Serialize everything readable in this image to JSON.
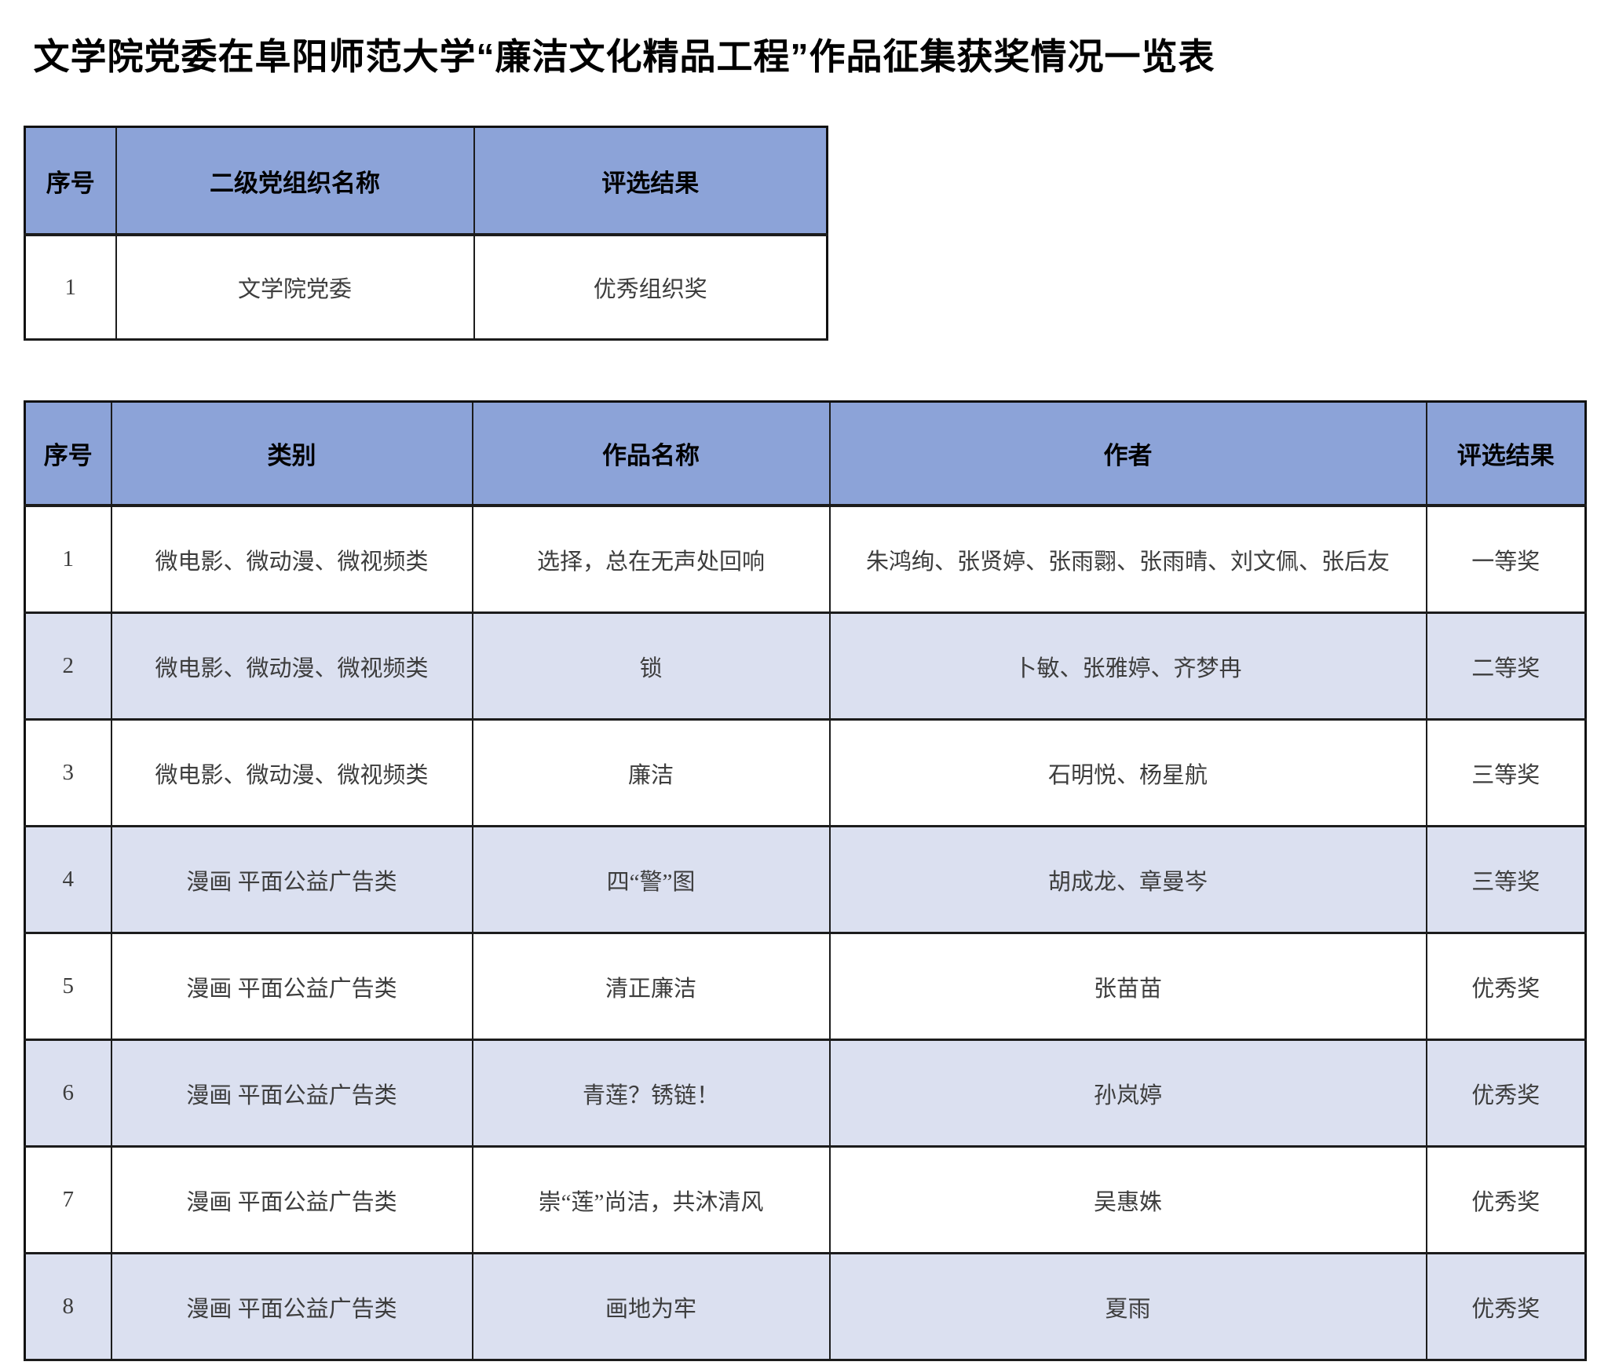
{
  "page": {
    "title": "文学院党委在阜阳师范大学“廉洁文化精品工程”作品征集获奖情况一览表"
  },
  "colors": {
    "header_bg": "#8CA3D8",
    "alt_row_bg": "#DBE0F0",
    "border": "#1C1C1C"
  },
  "org_table": {
    "headers": [
      "序号",
      "二级党组织名称",
      "评选结果"
    ],
    "rows": [
      [
        "1",
        "文学院党委",
        "优秀组织奖"
      ]
    ]
  },
  "works_table": {
    "headers": [
      "序号",
      "类别",
      "作品名称",
      "作者",
      "评选结果"
    ],
    "rows": [
      [
        "1",
        "微电影、微动漫、微视频类",
        "选择，总在无声处回响",
        "朱鸿绚、张贤婷、张雨翾、张雨晴、刘文佩、张后友",
        "一等奖"
      ],
      [
        "2",
        "微电影、微动漫、微视频类",
        "锁",
        "卜敏、张雅婷、齐梦冉",
        "二等奖"
      ],
      [
        "3",
        "微电影、微动漫、微视频类",
        "廉洁",
        "石明悦、杨星航",
        "三等奖"
      ],
      [
        "4",
        "漫画 平面公益广告类",
        "四“警”图",
        "胡成龙、章曼岑",
        "三等奖"
      ],
      [
        "5",
        "漫画 平面公益广告类",
        "清正廉洁",
        "张苗苗",
        "优秀奖"
      ],
      [
        "6",
        "漫画 平面公益广告类",
        "青莲？锈链！",
        "孙岚婷",
        "优秀奖"
      ],
      [
        "7",
        "漫画 平面公益广告类",
        "崇“莲”尚洁，共沐清风",
        "吴惠姝",
        "优秀奖"
      ],
      [
        "8",
        "漫画 平面公益广告类",
        "画地为牢",
        "夏雨",
        "优秀奖"
      ]
    ]
  }
}
